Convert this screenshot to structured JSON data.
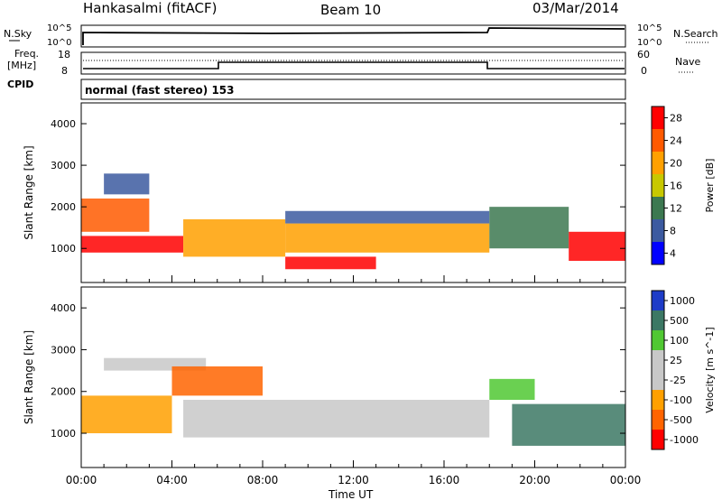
{
  "header": {
    "station": "Hankasalmi (fitACF)",
    "beam": "Beam 10",
    "date": "03/Mar/2014"
  },
  "noise_panel": {
    "left_label": "N.Sky",
    "right_label": "N.Search",
    "left_ticks": [
      "10^5",
      "10^0"
    ],
    "right_ticks": [
      "10^5",
      "10^0"
    ]
  },
  "freq_panel": {
    "left_label_1": "Freq.",
    "left_label_2": "[MHz]",
    "right_label": "Nave",
    "left_ticks": [
      "18",
      "8"
    ],
    "right_ticks": [
      "60",
      "0"
    ]
  },
  "cpid": {
    "label": "CPID",
    "program": "normal (fast stereo) 153"
  },
  "chart_data": [
    {
      "type": "heatmap",
      "title": "Power",
      "xlabel": "Time UT",
      "ylabel": "Slant Range [km]",
      "x_ticks": [
        "00:00",
        "04:00",
        "08:00",
        "12:00",
        "16:00",
        "20:00",
        "00:00"
      ],
      "y_ticks": [
        "1000",
        "2000",
        "3000",
        "4000"
      ],
      "xlim": [
        0,
        24
      ],
      "ylim": [
        180,
        4500
      ],
      "colorbar": {
        "label": "Power [dB]",
        "ticks": [
          "28",
          "24",
          "20",
          "16",
          "12",
          "8",
          "4"
        ],
        "colors": [
          "#ff0000",
          "#ff5a00",
          "#ffa000",
          "#c8c800",
          "#3c7850",
          "#3c5aa0",
          "#0000ff"
        ]
      },
      "bands": [
        {
          "x": [
            0.0,
            4.5
          ],
          "y": [
            900,
            1300
          ],
          "color": "#ff0000"
        },
        {
          "x": [
            4.5,
            9.0
          ],
          "y": [
            800,
            1700
          ],
          "color": "#ffa000"
        },
        {
          "x": [
            9.0,
            13.0
          ],
          "y": [
            500,
            800
          ],
          "color": "#ff0000"
        },
        {
          "x": [
            9.0,
            18.0
          ],
          "y": [
            900,
            1600
          ],
          "color": "#ffa000"
        },
        {
          "x": [
            9.0,
            18.0
          ],
          "y": [
            1600,
            1900
          ],
          "color": "#3c5aa0"
        },
        {
          "x": [
            18.0,
            21.5
          ],
          "y": [
            1000,
            2000
          ],
          "color": "#3c7850"
        },
        {
          "x": [
            21.5,
            24.0
          ],
          "y": [
            700,
            1400
          ],
          "color": "#ff0000"
        },
        {
          "x": [
            0.0,
            3.0
          ],
          "y": [
            1400,
            2200
          ],
          "color": "#ff5a00"
        },
        {
          "x": [
            1.0,
            3.0
          ],
          "y": [
            2300,
            2800
          ],
          "color": "#3c5aa0"
        }
      ]
    },
    {
      "type": "heatmap",
      "title": "Velocity",
      "xlabel": "Time UT",
      "ylabel": "Slant Range [km]",
      "x_ticks": [
        "00:00",
        "04:00",
        "08:00",
        "12:00",
        "16:00",
        "20:00",
        "00:00"
      ],
      "y_ticks": [
        "1000",
        "2000",
        "3000",
        "4000"
      ],
      "xlim": [
        0,
        24
      ],
      "ylim": [
        180,
        4500
      ],
      "colorbar": {
        "label": "Velocity [m s^-1]",
        "ticks": [
          "1000",
          "500",
          "100",
          "25",
          "-25",
          "-100",
          "-500",
          "-1000"
        ],
        "colors": [
          "#1e3cc8",
          "#3c7864",
          "#50c832",
          "#c8c8c8",
          "#c8c8c8",
          "#ffa000",
          "#ff6400",
          "#ff0000"
        ]
      },
      "bands": [
        {
          "x": [
            4.5,
            18.0
          ],
          "y": [
            900,
            1800
          ],
          "color": "#c8c8c8"
        },
        {
          "x": [
            1.0,
            5.5
          ],
          "y": [
            2500,
            2800
          ],
          "color": "#c8c8c8"
        },
        {
          "x": [
            4.0,
            8.0
          ],
          "y": [
            1900,
            2600
          ],
          "color": "#ff6400"
        },
        {
          "x": [
            0.0,
            4.0
          ],
          "y": [
            1000,
            1900
          ],
          "color": "#ffa000"
        },
        {
          "x": [
            18.0,
            20.0
          ],
          "y": [
            1800,
            2300
          ],
          "color": "#50c832"
        },
        {
          "x": [
            19.0,
            24.0
          ],
          "y": [
            700,
            1700
          ],
          "color": "#3c7864"
        }
      ]
    }
  ]
}
